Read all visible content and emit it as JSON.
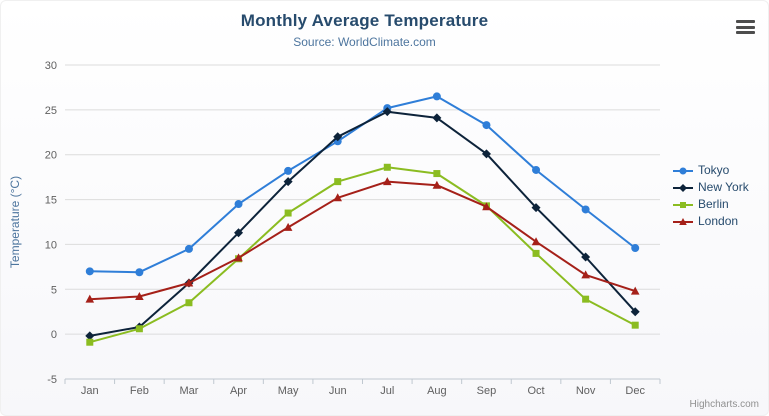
{
  "credits": "Highcharts.com",
  "chart_data": {
    "type": "line",
    "title": "Monthly Average Temperature",
    "subtitle": "Source: WorldClimate.com",
    "categories": [
      "Jan",
      "Feb",
      "Mar",
      "Apr",
      "May",
      "Jun",
      "Jul",
      "Aug",
      "Sep",
      "Oct",
      "Nov",
      "Dec"
    ],
    "xlabel": "",
    "ylabel": "Temperature (°C)",
    "ylim": [
      -5,
      30
    ],
    "yticks": [
      -5,
      0,
      5,
      10,
      15,
      20,
      25,
      30
    ],
    "grid": true,
    "legend_position": "right",
    "colors": {
      "grid": "#dcdcdc",
      "axis_line": "#c0c8d0",
      "tick_text": "#606060",
      "title": "#274b6d",
      "subtitle": "#4d759e",
      "legend_text": "#274b6d"
    },
    "series": [
      {
        "name": "Tokyo",
        "color": "#2f7ed8",
        "marker": "circle",
        "values": [
          7.0,
          6.9,
          9.5,
          14.5,
          18.2,
          21.5,
          25.2,
          26.5,
          23.3,
          18.3,
          13.9,
          9.6
        ]
      },
      {
        "name": "New York",
        "color": "#0d233a",
        "marker": "diamond",
        "values": [
          -0.2,
          0.8,
          5.7,
          11.3,
          17.0,
          22.0,
          24.8,
          24.1,
          20.1,
          14.1,
          8.6,
          2.5
        ]
      },
      {
        "name": "Berlin",
        "color": "#8bbc21",
        "marker": "square",
        "values": [
          -0.9,
          0.6,
          3.5,
          8.4,
          13.5,
          17.0,
          18.6,
          17.9,
          14.3,
          9.0,
          3.9,
          1.0
        ]
      },
      {
        "name": "London",
        "color": "#a52019",
        "marker": "triangle",
        "values": [
          3.9,
          4.2,
          5.7,
          8.5,
          11.9,
          15.2,
          17.0,
          16.6,
          14.2,
          10.3,
          6.6,
          4.8
        ]
      }
    ]
  }
}
